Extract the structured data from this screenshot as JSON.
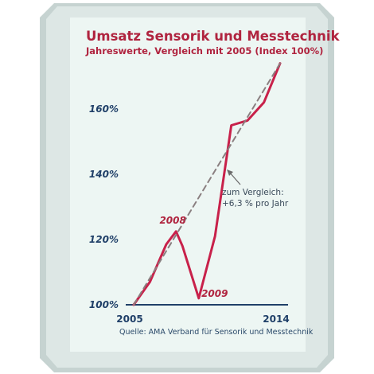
{
  "chart_data": {
    "type": "line",
    "title": "Umsatz Sensorik und Messtechnik",
    "subtitle": "Jahreswerte, Vergleich mit 2005 (Index 100%)",
    "xlabel": "",
    "ylabel": "",
    "x_tick_labels": [
      "2005",
      "2014"
    ],
    "y_tick_labels": [
      "100%",
      "120%",
      "140%",
      "160%"
    ],
    "y_ticks": [
      100,
      120,
      140,
      160
    ],
    "ylim": [
      100,
      175
    ],
    "xlim": [
      2005,
      2014
    ],
    "grid": false,
    "series": [
      {
        "name": "",
        "color": "#c8214a",
        "style": "solid",
        "x": [
          2005,
          2006,
          2007,
          2007.6,
          2008,
          2009,
          2010,
          2011,
          2012,
          2013,
          2014
        ],
        "y": [
          100,
          107,
          118.5,
          122.5,
          118,
          102,
          121,
          155,
          156.5,
          162,
          174
        ]
      },
      {
        "name": "",
        "color": "#8a7f80",
        "style": "dashed",
        "x": [
          2005,
          2014
        ],
        "y": [
          100,
          174
        ]
      }
    ],
    "annotations": [
      {
        "text": "2008",
        "x": 2007.6,
        "y": 122.5,
        "color": "#b0243f"
      },
      {
        "text": "2009",
        "x": 2009,
        "y": 102,
        "color": "#b0243f"
      },
      {
        "lines": [
          "zum Vergleich:",
          "+6,3 % pro Jahr"
        ],
        "x": 2011.3,
        "y": 141,
        "color": "#3a4a5a"
      }
    ]
  },
  "source": "Quelle: AMA Verband für Sensorik und Messtechnik",
  "colors": {
    "frame_outer": "#c8d4d2",
    "frame_bevel": "#dfe7e5",
    "panel": "#edf6f3",
    "baseline": "#1f3f68",
    "tick_labels": "#1f3f68"
  }
}
